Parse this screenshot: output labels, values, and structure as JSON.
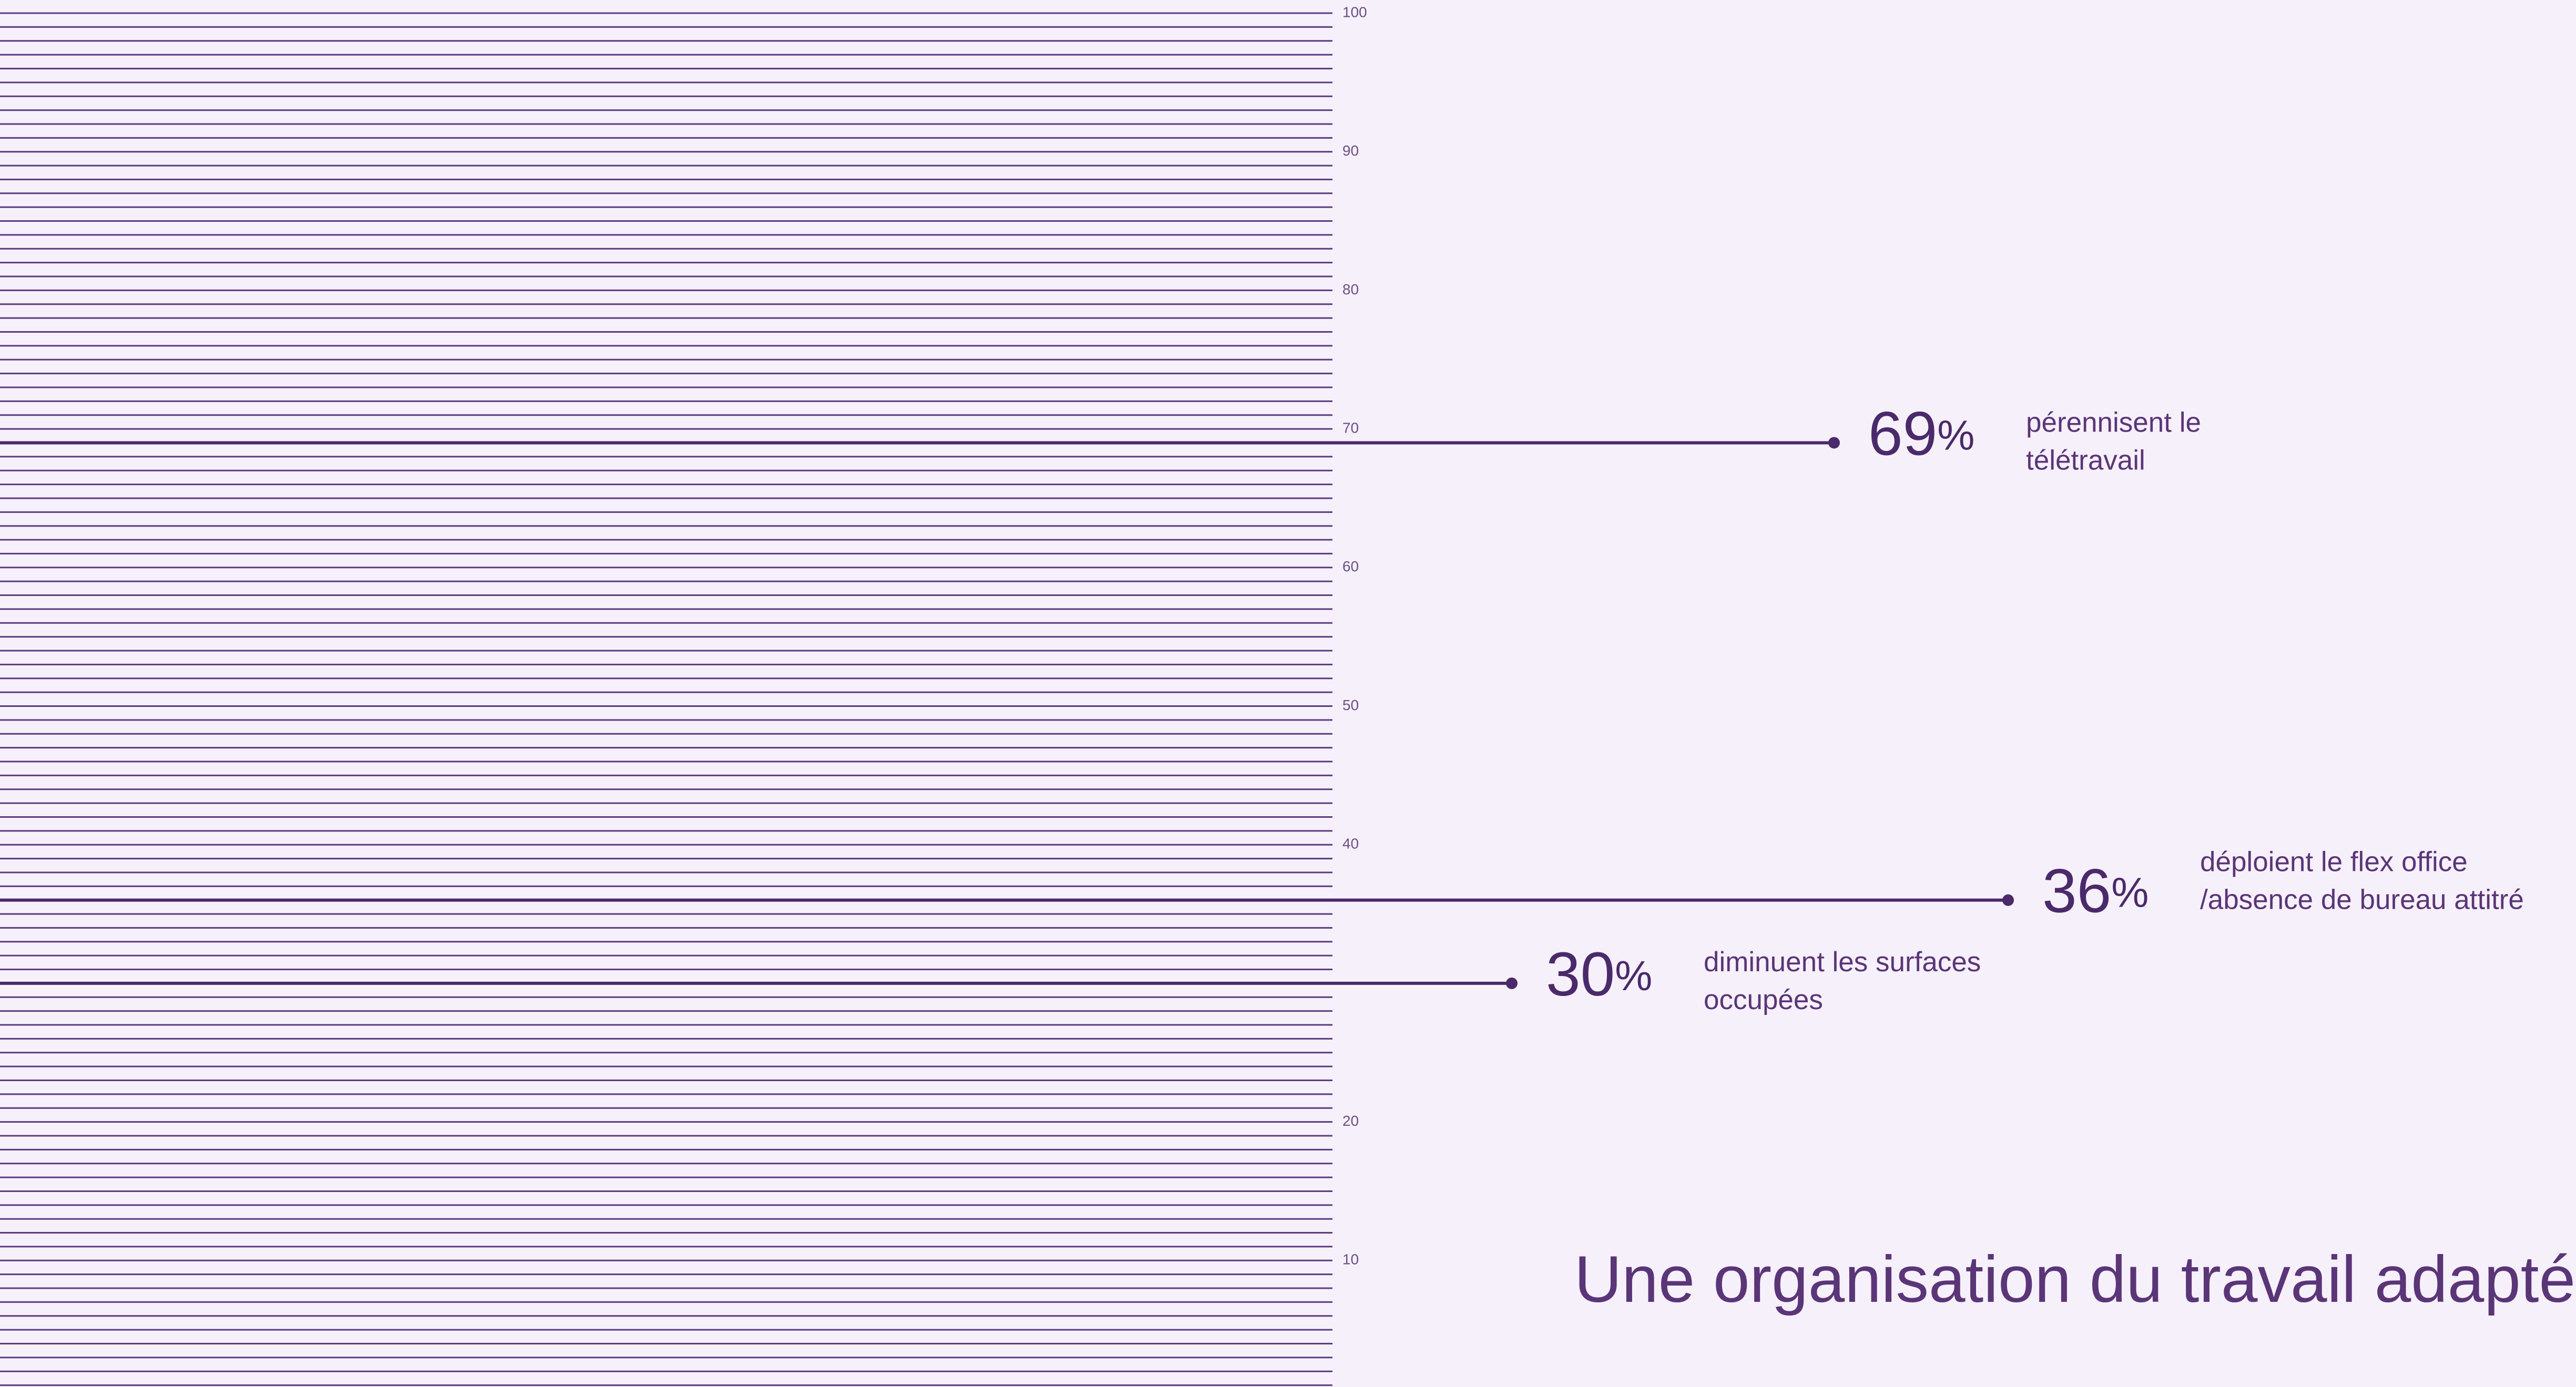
{
  "chart_data": {
    "type": "dot-line",
    "title": "Une organisation du travail adaptée",
    "unit": "%",
    "ylim": [
      0,
      100
    ],
    "yticks": [
      10,
      20,
      40,
      50,
      60,
      70,
      80,
      90,
      100
    ],
    "minor_grid": true,
    "grid_color": "#5b3a80",
    "color": "#4a2a6a",
    "values": [
      69,
      36,
      30
    ],
    "labels": [
      [
        "pérennisent le",
        "télétravail"
      ],
      [
        "déploient le flex office",
        "/absence de bureau attitré"
      ],
      [
        "diminuent les surfaces",
        "occupées"
      ]
    ]
  }
}
